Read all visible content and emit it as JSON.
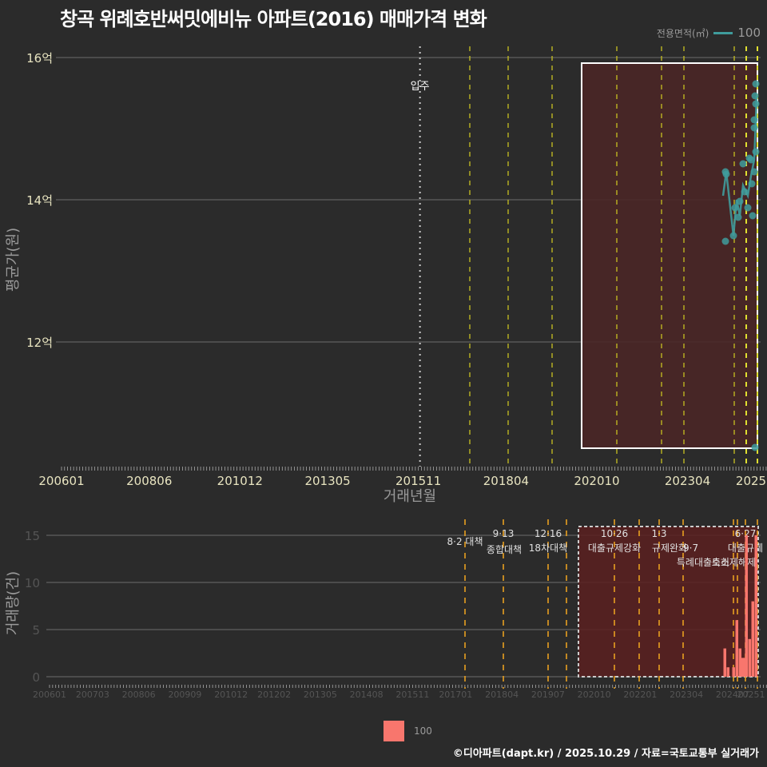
{
  "title": "창곡 위례호반써밋에비뉴 아파트(2016) 매매가격 변화",
  "legend_top": {
    "label": "전용면적(㎡)",
    "value": "100",
    "color": "#3f9c9c"
  },
  "legend_bottom": {
    "value": "100",
    "color": "#f8766d"
  },
  "footer": "©디아파트(dapt.kr) / 2025.10.29 / 자료=국토교통부 실거래가",
  "chart_data": [
    {
      "type": "line",
      "title": "창곡 위례호반써밋에비뉴 아파트(2016) 매매가격 변화",
      "xlabel": "거래년월",
      "ylabel": "평균가(원)",
      "y_ticks": [
        "12억",
        "14억",
        "16억"
      ],
      "x_ticks": [
        "200601",
        "200806",
        "201012",
        "201305",
        "201511",
        "201804",
        "202010",
        "202304",
        "2025"
      ],
      "ylim": [
        10.4,
        16.1
      ],
      "grid": true,
      "annotations": [
        {
          "label": "입주",
          "x": "201511"
        }
      ],
      "highlight_box": {
        "x_from": "202011",
        "x_to": "202510",
        "y_from": 10.5,
        "y_to": 15.9
      },
      "series": [
        {
          "name": "100",
          "points": [
            {
              "x": "202408",
              "y": 14.35
            },
            {
              "x": "202409",
              "y": 14.4
            },
            {
              "x": "202409",
              "y": 13.4
            },
            {
              "x": "202410",
              "y": 13.55
            },
            {
              "x": "202410",
              "y": 13.9
            },
            {
              "x": "202411",
              "y": 14.0
            },
            {
              "x": "202411",
              "y": 14.5
            },
            {
              "x": "202412",
              "y": 13.7
            },
            {
              "x": "202412",
              "y": 14.2
            },
            {
              "x": "202501",
              "y": 14.6
            },
            {
              "x": "202501",
              "y": 13.9
            },
            {
              "x": "202502",
              "y": 14.3
            },
            {
              "x": "202502",
              "y": 13.8
            },
            {
              "x": "202503",
              "y": 14.4
            },
            {
              "x": "202503",
              "y": 14.8
            },
            {
              "x": "202504",
              "y": 15.0
            },
            {
              "x": "202504",
              "y": 14.5
            },
            {
              "x": "202505",
              "y": 15.4
            },
            {
              "x": "202505",
              "y": 15.2
            },
            {
              "x": "202506",
              "y": 15.5
            },
            {
              "x": "202506",
              "y": 15.6
            },
            {
              "x": "202510",
              "y": 10.5
            }
          ]
        }
      ]
    },
    {
      "type": "bar",
      "xlabel": "",
      "ylabel": "거래량(건)",
      "y_ticks": [
        "0",
        "5",
        "10",
        "15"
      ],
      "x_ticks": [
        "200601",
        "200703",
        "200806",
        "200909",
        "201012",
        "201202",
        "201305",
        "201408",
        "201511",
        "201701",
        "201804",
        "201907",
        "202010",
        "202201",
        "202304",
        "202407",
        "20251"
      ],
      "ylim": [
        0,
        16
      ],
      "policy_annotations": [
        {
          "date": "8·2 대책",
          "label": "8·2 대책"
        },
        {
          "date": "9·13",
          "label": "종합대책"
        },
        {
          "date": "12·16",
          "label": "18차대책"
        },
        {
          "date": "10·26",
          "label": "대출규제강화"
        },
        {
          "date": "1·3",
          "label": "규제완화"
        },
        {
          "date": "9·7",
          "label": "특례대출축소"
        },
        {
          "date": "",
          "label": "토허제해제"
        },
        {
          "date": "6·27",
          "label": "대출규제"
        }
      ],
      "series": [
        {
          "name": "100",
          "bars": [
            {
              "x": "202407",
              "y": 3
            },
            {
              "x": "202408",
              "y": 1
            },
            {
              "x": "202410",
              "y": 1
            },
            {
              "x": "202411",
              "y": 6
            },
            {
              "x": "202412",
              "y": 3
            },
            {
              "x": "202501",
              "y": 2
            },
            {
              "x": "202502",
              "y": 2
            },
            {
              "x": "202503",
              "y": 15
            },
            {
              "x": "202504",
              "y": 4
            },
            {
              "x": "202505",
              "y": 8
            },
            {
              "x": "202506",
              "y": 15
            }
          ]
        }
      ]
    }
  ]
}
